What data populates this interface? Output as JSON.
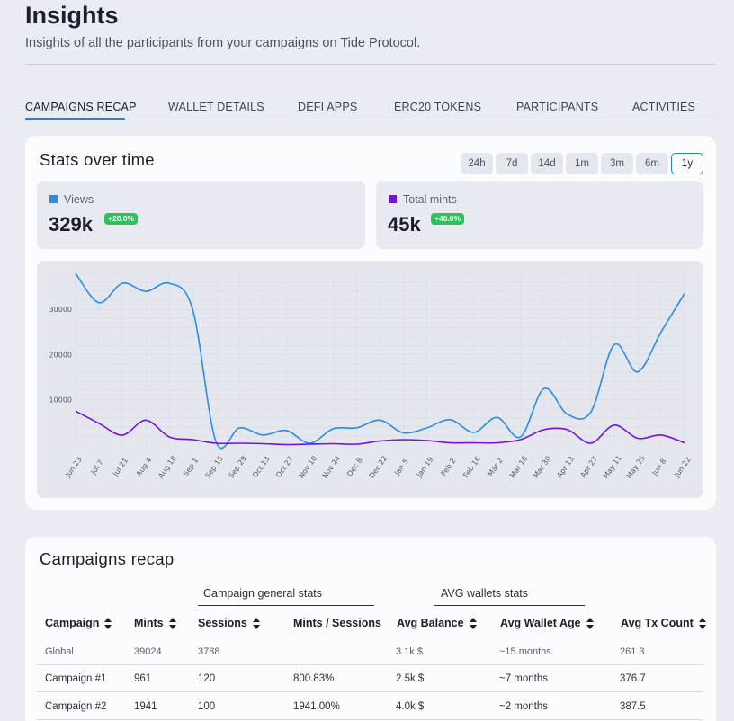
{
  "header": {
    "title": "Insights",
    "subtitle": "Insights of all the participants from your campaigns on Tide Protocol."
  },
  "tabs": [
    {
      "label": "CAMPAIGNS RECAP",
      "active": true
    },
    {
      "label": "WALLET DETAILS",
      "active": false
    },
    {
      "label": "DEFI APPS",
      "active": false
    },
    {
      "label": "ERC20 TOKENS",
      "active": false
    },
    {
      "label": "PARTICIPANTS",
      "active": false
    },
    {
      "label": "ACTIVITIES",
      "active": false
    }
  ],
  "stats_card": {
    "title": "Stats over time",
    "ranges": [
      "24h",
      "7d",
      "14d",
      "1m",
      "3m",
      "6m",
      "1y"
    ],
    "selected_range": "1y",
    "stats": [
      {
        "label": "Views",
        "value": "329k",
        "change": "+20.0%",
        "color": "#2b8be6"
      },
      {
        "label": "Total mints",
        "value": "45k",
        "change": "+40.0%",
        "color": "#7a0fe0"
      }
    ]
  },
  "chart_data": {
    "type": "line",
    "title": "",
    "xlabel": "",
    "ylabel": "",
    "ylim": [
      0,
      38000
    ],
    "yticks": [
      10000,
      20000,
      30000
    ],
    "grid": true,
    "x": [
      "Jun 23",
      "Jul 7",
      "Jul 21",
      "Aug 4",
      "Aug 18",
      "Sep 1",
      "Sep 15",
      "Sep 29",
      "Oct 13",
      "Oct 27",
      "Nov 10",
      "Nov 24",
      "Dec 8",
      "Dec 22",
      "Jan 5",
      "Jan 19",
      "Feb 2",
      "Feb 16",
      "Mar 2",
      "Mar 16",
      "Mar 30",
      "Apr 13",
      "Apr 27",
      "May 11",
      "May 25",
      "Jun 8",
      "Jun 22"
    ],
    "series": [
      {
        "name": "Views",
        "color": "#2b8be6",
        "values": [
          38000,
          31500,
          35800,
          34000,
          35800,
          30000,
          700,
          3800,
          2200,
          3200,
          400,
          3600,
          3800,
          5500,
          2700,
          3800,
          5600,
          2800,
          6100,
          1800,
          12500,
          6800,
          7300,
          22200,
          16200,
          25000,
          33500
        ]
      },
      {
        "name": "Total mints",
        "color": "#7a0fe0",
        "values": [
          7500,
          4800,
          2200,
          5500,
          1800,
          1200,
          400,
          400,
          300,
          100,
          200,
          300,
          200,
          900,
          1200,
          1000,
          500,
          500,
          500,
          1200,
          3400,
          3400,
          400,
          4400,
          1500,
          2200,
          500
        ]
      }
    ]
  },
  "recap_card": {
    "title": "Campaigns recap",
    "groups": [
      "Campaign general stats",
      "AVG wallets stats"
    ],
    "columns": [
      "Campaign",
      "Mints",
      "Sessions",
      "Mints / Sessions",
      "Avg Balance",
      "Avg Wallet Age",
      "Avg Tx Count"
    ],
    "rows": [
      {
        "campaign": "Global",
        "mints": "39024",
        "sessions": "3788",
        "ratio": "",
        "balance": "3.1k $",
        "age": "~15 months",
        "tx": "261.3"
      },
      {
        "campaign": "Campaign #1",
        "mints": "961",
        "sessions": "120",
        "ratio": "800.83%",
        "balance": "2.5k $",
        "age": "~7 months",
        "tx": "376.7"
      },
      {
        "campaign": "Campaign #2",
        "mints": "1941",
        "sessions": "100",
        "ratio": "1941.00%",
        "balance": "4.0k $",
        "age": "~2 months",
        "tx": "387.5"
      }
    ]
  }
}
